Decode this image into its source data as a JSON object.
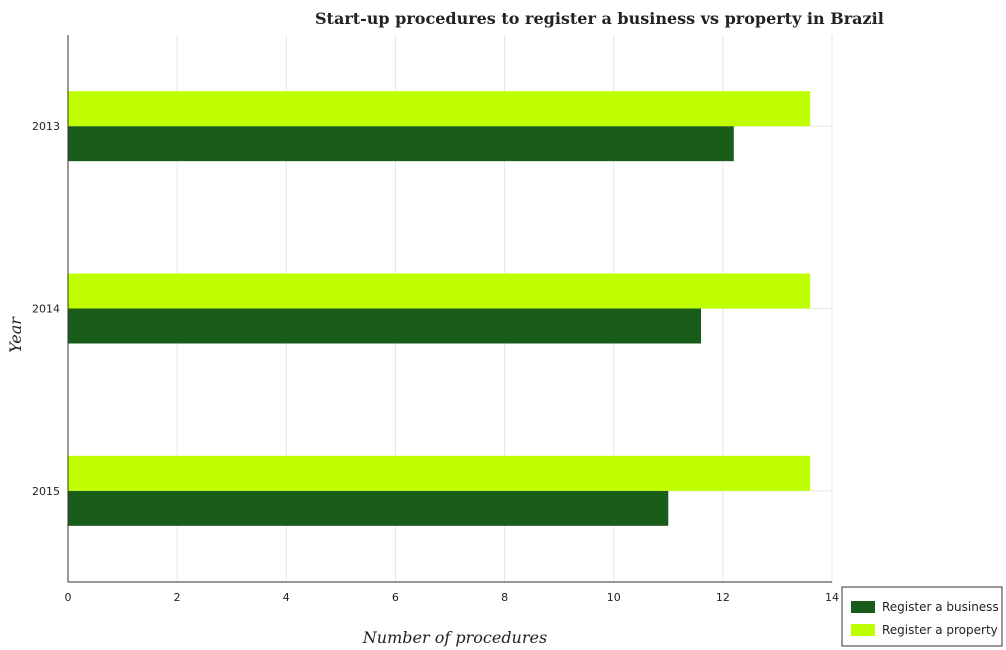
{
  "chart_data": {
    "type": "bar",
    "orientation": "horizontal",
    "title": "Start-up procedures to register a business vs property in Brazil",
    "xlabel": "Number of procedures",
    "ylabel": "Year",
    "categories": [
      "2013",
      "2014",
      "2015"
    ],
    "series": [
      {
        "name": "Register a business",
        "color": "#1a5c1a",
        "values": [
          12.2,
          11.6,
          11.0
        ]
      },
      {
        "name": "Register a property",
        "color": "#bfff00",
        "values": [
          13.6,
          13.6,
          13.6
        ]
      }
    ],
    "xlim": [
      0,
      14
    ],
    "xticks": [
      "0",
      "2",
      "4",
      "6",
      "8",
      "10",
      "12",
      "14"
    ],
    "grid": true,
    "legend_position": "bottom-right"
  }
}
